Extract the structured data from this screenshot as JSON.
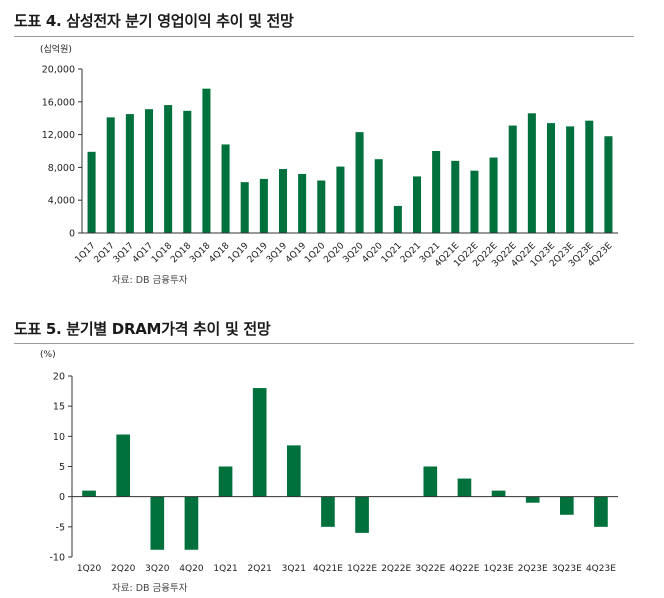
{
  "figures": [
    {
      "title": "도표 4. 삼성전자 분기 영업이익 추이 및 전망",
      "source": "자료: DB 금융투자"
    },
    {
      "title": "도표 5. 분기별 DRAM가격 추이 및 전망",
      "source": "자료: DB 금융투자"
    }
  ],
  "colors": {
    "bar": "#00703c",
    "axis": "#333333",
    "text": "#222222"
  },
  "chart_data": [
    {
      "type": "bar",
      "title": "도표 4. 삼성전자 분기 영업이익 추이 및 전망",
      "ylabel": "(십억원)",
      "xlabel": "",
      "ylim": [
        0,
        20000
      ],
      "yticks": [
        0,
        4000,
        8000,
        12000,
        16000,
        20000
      ],
      "ytick_labels": [
        "0",
        "4,000",
        "8,000",
        "12,000",
        "16,000",
        "20,000"
      ],
      "categories": [
        "1Q17",
        "2Q17",
        "3Q17",
        "4Q17",
        "1Q18",
        "2Q18",
        "3Q18",
        "4Q18",
        "1Q19",
        "2Q19",
        "3Q19",
        "4Q19",
        "1Q20",
        "2Q20",
        "3Q20",
        "4Q20",
        "1Q21",
        "2Q21",
        "3Q21",
        "4Q21E",
        "1Q22E",
        "2Q22E",
        "3Q22E",
        "4Q22E",
        "1Q23E",
        "2Q23E",
        "3Q23E",
        "4Q23E"
      ],
      "values": [
        9900,
        14100,
        14500,
        15100,
        15600,
        14900,
        17600,
        10800,
        6200,
        6600,
        7800,
        7200,
        6400,
        8100,
        12300,
        9000,
        3300,
        6900,
        10000,
        8800,
        7600,
        9200,
        13100,
        14600,
        13400,
        13000,
        13700,
        11800
      ],
      "grid": false,
      "legend": "none"
    },
    {
      "type": "bar",
      "title": "도표 5. 분기별 DRAM가격 추이 및 전망",
      "ylabel": "(%)",
      "xlabel": "",
      "ylim": [
        -10,
        20
      ],
      "yticks": [
        -10,
        -5,
        0,
        5,
        10,
        15,
        20
      ],
      "ytick_labels": [
        "-10",
        "-5",
        "0",
        "5",
        "10",
        "15",
        "20"
      ],
      "categories": [
        "1Q20",
        "2Q20",
        "3Q20",
        "4Q20",
        "1Q21",
        "2Q21",
        "3Q21",
        "4Q21E",
        "1Q22E",
        "2Q22E",
        "3Q22E",
        "4Q22E",
        "1Q23E",
        "2Q23E",
        "3Q23E",
        "4Q23E"
      ],
      "values": [
        1,
        10.3,
        -8.8,
        -8.8,
        5,
        18,
        8.5,
        -5,
        -6,
        0,
        5,
        3,
        1,
        -1,
        -3,
        -5
      ],
      "grid": false,
      "legend": "none"
    }
  ]
}
